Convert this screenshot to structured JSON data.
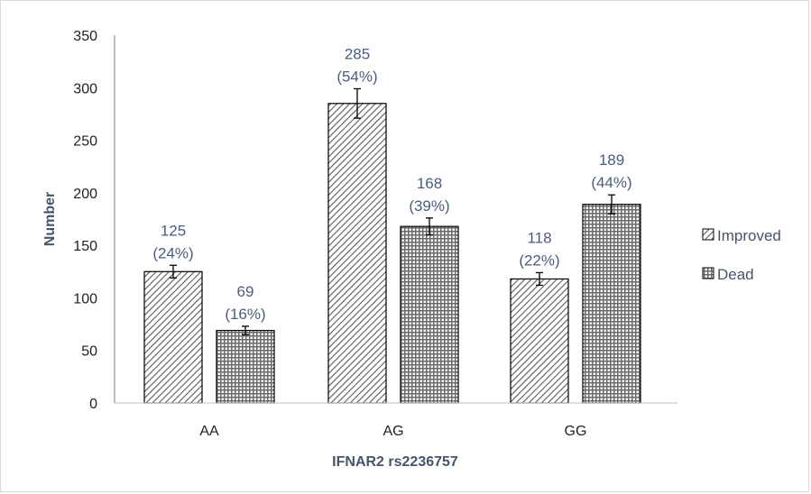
{
  "chart_data": {
    "type": "bar",
    "title": "",
    "xlabel": "IFNAR2 rs2236757",
    "ylabel": "Number",
    "categories": [
      "AA",
      "AG",
      "GG"
    ],
    "ylim": [
      0,
      350
    ],
    "yticks": [
      0,
      50,
      100,
      150,
      200,
      250,
      300,
      350
    ],
    "grid": false,
    "legend_position": "right",
    "series": [
      {
        "name": "Improved",
        "pattern": "diagonal-hatch",
        "values": [
          125,
          285,
          118
        ],
        "error": [
          6,
          14,
          6
        ],
        "labels": [
          [
            "125",
            "(24%)"
          ],
          [
            "285",
            "(54%)"
          ],
          [
            "118",
            "(22%)"
          ]
        ]
      },
      {
        "name": "Dead",
        "pattern": "dotted-grid",
        "values": [
          69,
          168,
          189
        ],
        "error": [
          4,
          8,
          9
        ],
        "labels": [
          [
            "69",
            "(16%)"
          ],
          [
            "168",
            "(39%)"
          ],
          [
            "189",
            "(44%)"
          ]
        ]
      }
    ],
    "colors": {
      "axis": "#7f7f7f",
      "bar_border": "#000000",
      "label": "#4a5d7e",
      "title": "#44546a"
    }
  }
}
